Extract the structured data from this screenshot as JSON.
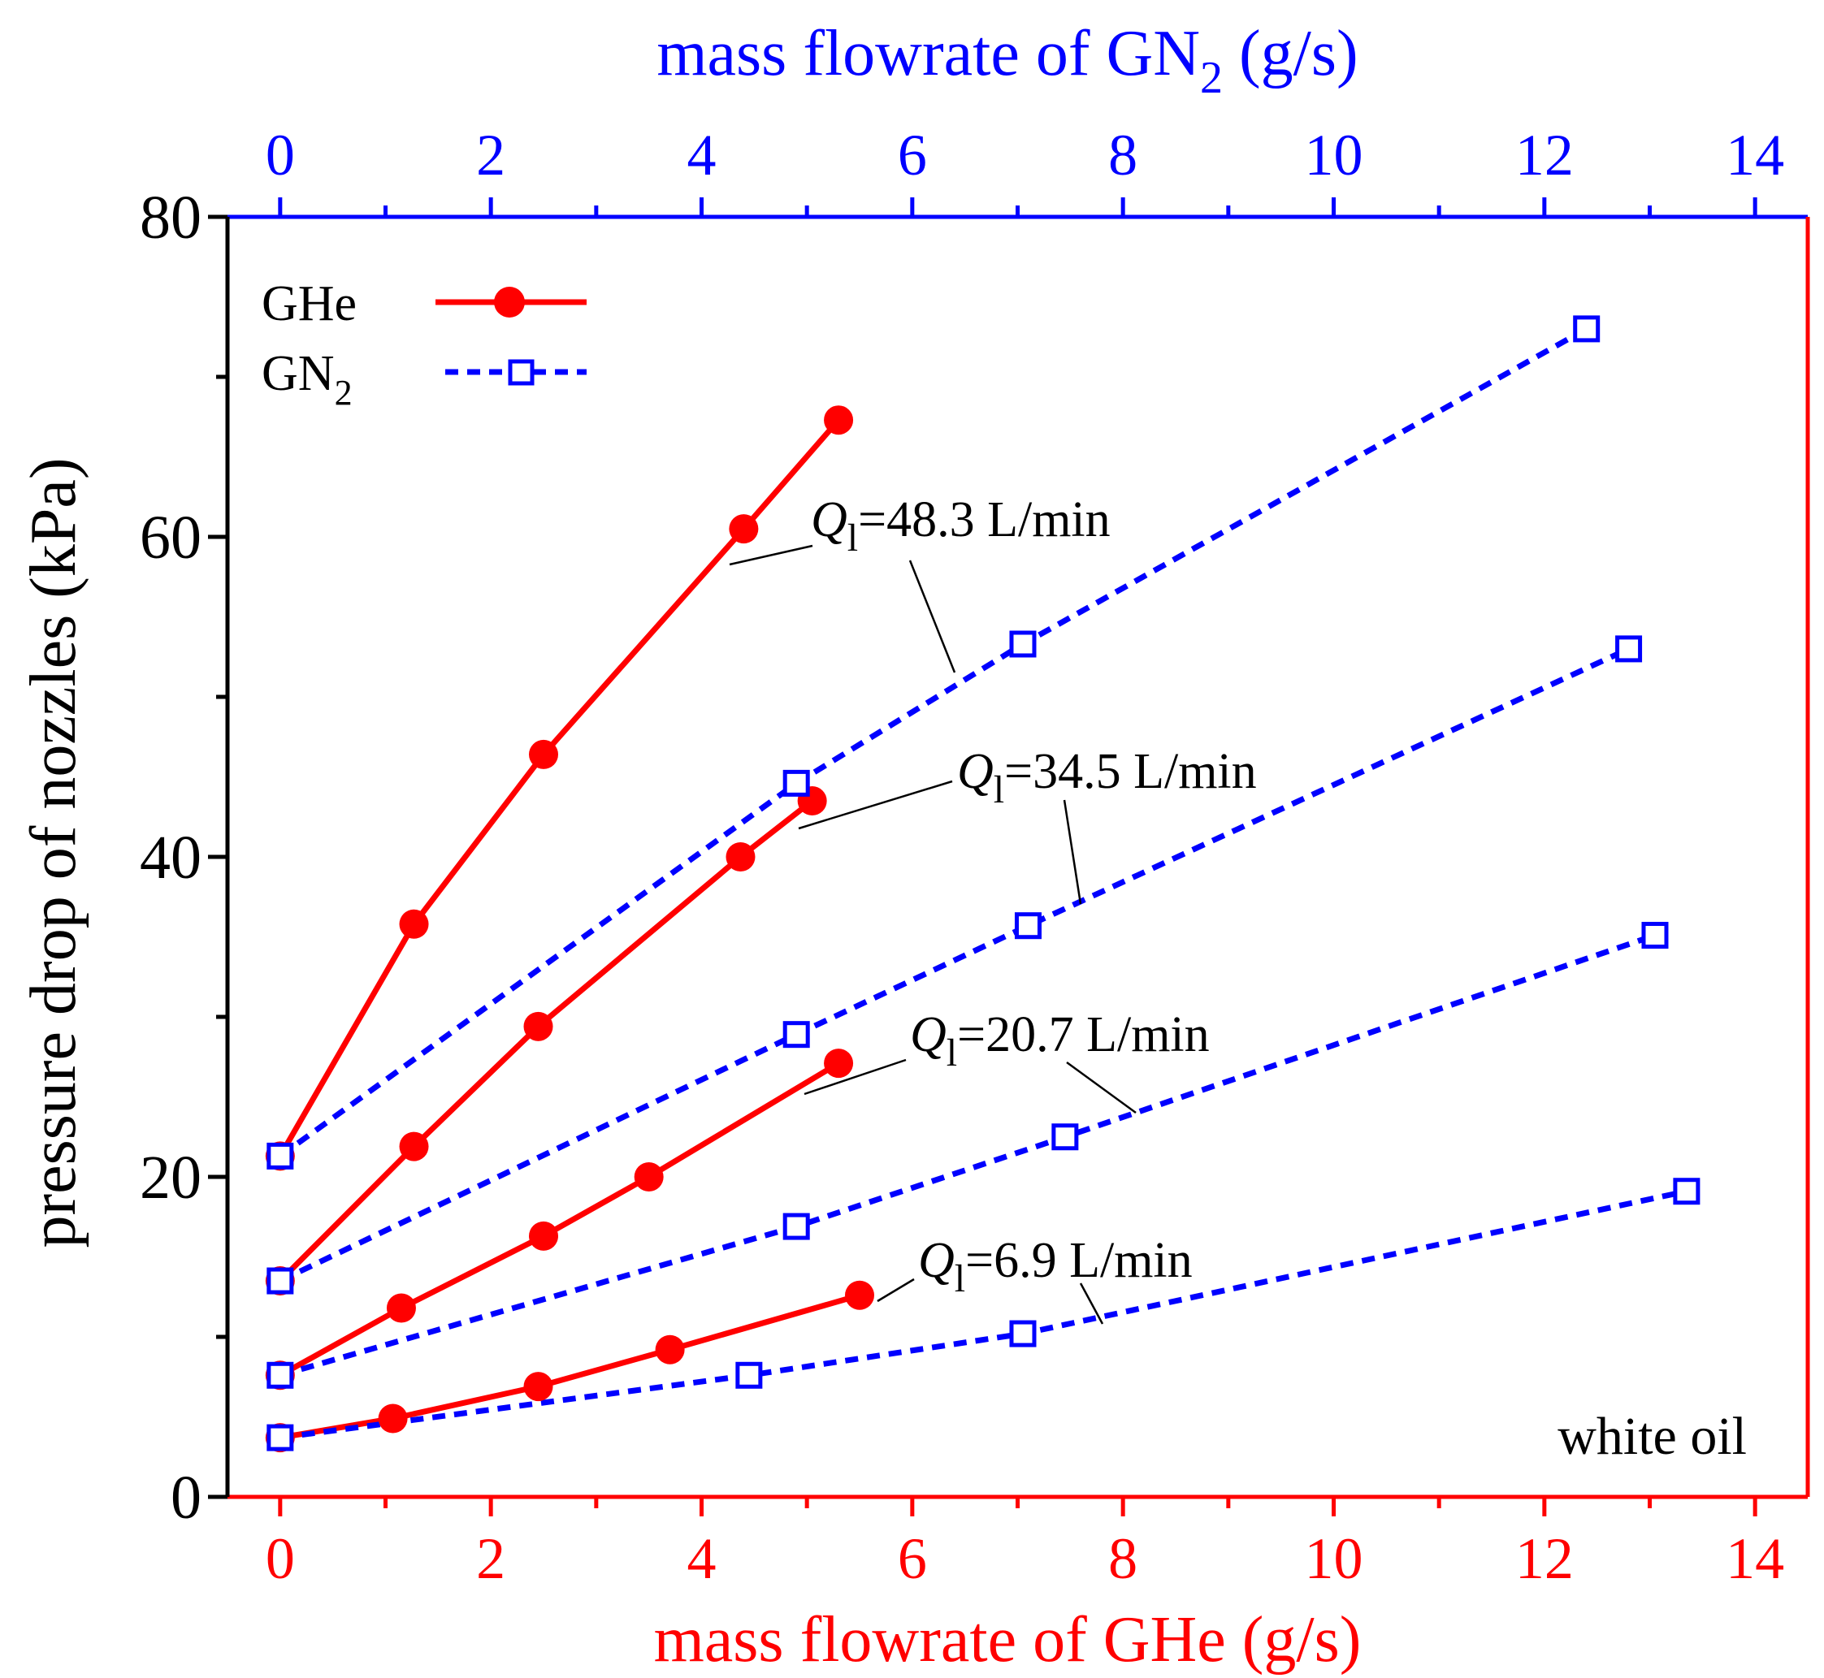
{
  "chart_data": {
    "type": "line",
    "xlabel_bottom": "mass flowrate of GHe (g/s)",
    "xlabel_top": {
      "main": "mass flowrate of GN",
      "sub": "2",
      "tail": " (g/s)"
    },
    "ylabel": "pressure drop of nozzles (kPa)",
    "xlim": [
      -0.5,
      14.5
    ],
    "ylim": [
      0,
      80
    ],
    "x_ticks": [
      "0",
      "2",
      "4",
      "6",
      "8",
      "10",
      "12",
      "14"
    ],
    "y_ticks": [
      "0",
      "20",
      "40",
      "60",
      "80"
    ],
    "legend": {
      "position": "top-left",
      "entries": [
        {
          "label": "GHe",
          "sub": ""
        },
        {
          "label": "GN",
          "sub": "2"
        }
      ]
    },
    "annotation": "white oil",
    "group_labels": [
      {
        "prefix": "Q",
        "sub": "l",
        "text": "=48.3 L/min"
      },
      {
        "prefix": "Q",
        "sub": "l",
        "text": "=34.5 L/min"
      },
      {
        "prefix": "Q",
        "sub": "l",
        "text": "=20.7 L/min"
      },
      {
        "prefix": "Q",
        "sub": "l",
        "text": "=6.9 L/min"
      }
    ],
    "series": [
      {
        "name": "GHe Ql=48.3 L/min",
        "gas": "GHe",
        "x": [
          0,
          1.27,
          2.5,
          4.4,
          5.3
        ],
        "y": [
          21.3,
          35.8,
          46.4,
          60.5,
          67.3
        ]
      },
      {
        "name": "GHe Ql=34.5 L/min",
        "gas": "GHe",
        "x": [
          0,
          1.27,
          2.45,
          4.37,
          5.05
        ],
        "y": [
          13.5,
          21.9,
          29.4,
          40.0,
          43.5
        ]
      },
      {
        "name": "GHe Ql=20.7 L/min",
        "gas": "GHe",
        "x": [
          0,
          1.15,
          2.5,
          3.5,
          5.3
        ],
        "y": [
          7.6,
          11.8,
          16.3,
          20.0,
          27.1
        ]
      },
      {
        "name": "GHe Ql=6.9 L/min",
        "gas": "GHe",
        "x": [
          0,
          1.07,
          2.45,
          3.7,
          5.5
        ],
        "y": [
          3.7,
          4.9,
          6.9,
          9.2,
          12.6
        ]
      },
      {
        "name": "GN2 Ql=48.3 L/min",
        "gas": "GN2",
        "x": [
          0,
          4.9,
          7.05,
          12.4
        ],
        "y": [
          21.3,
          44.6,
          53.3,
          73.0
        ]
      },
      {
        "name": "GN2 Ql=34.5 L/min",
        "gas": "GN2",
        "x": [
          0,
          4.9,
          7.1,
          12.8
        ],
        "y": [
          13.5,
          28.9,
          35.7,
          53.0
        ]
      },
      {
        "name": "GN2 Ql=20.7 L/min",
        "gas": "GN2",
        "x": [
          0,
          4.9,
          7.45,
          13.05
        ],
        "y": [
          7.6,
          16.9,
          22.5,
          35.1
        ]
      },
      {
        "name": "GN2 Ql=6.9 L/min",
        "gas": "GN2",
        "x": [
          0,
          4.45,
          7.05,
          13.35
        ],
        "y": [
          3.7,
          7.6,
          10.2,
          19.1
        ]
      }
    ],
    "colors": {
      "ghe": "#ff0000",
      "gn2": "#0000ff",
      "axis_left": "#000000",
      "label": "#000000"
    }
  }
}
